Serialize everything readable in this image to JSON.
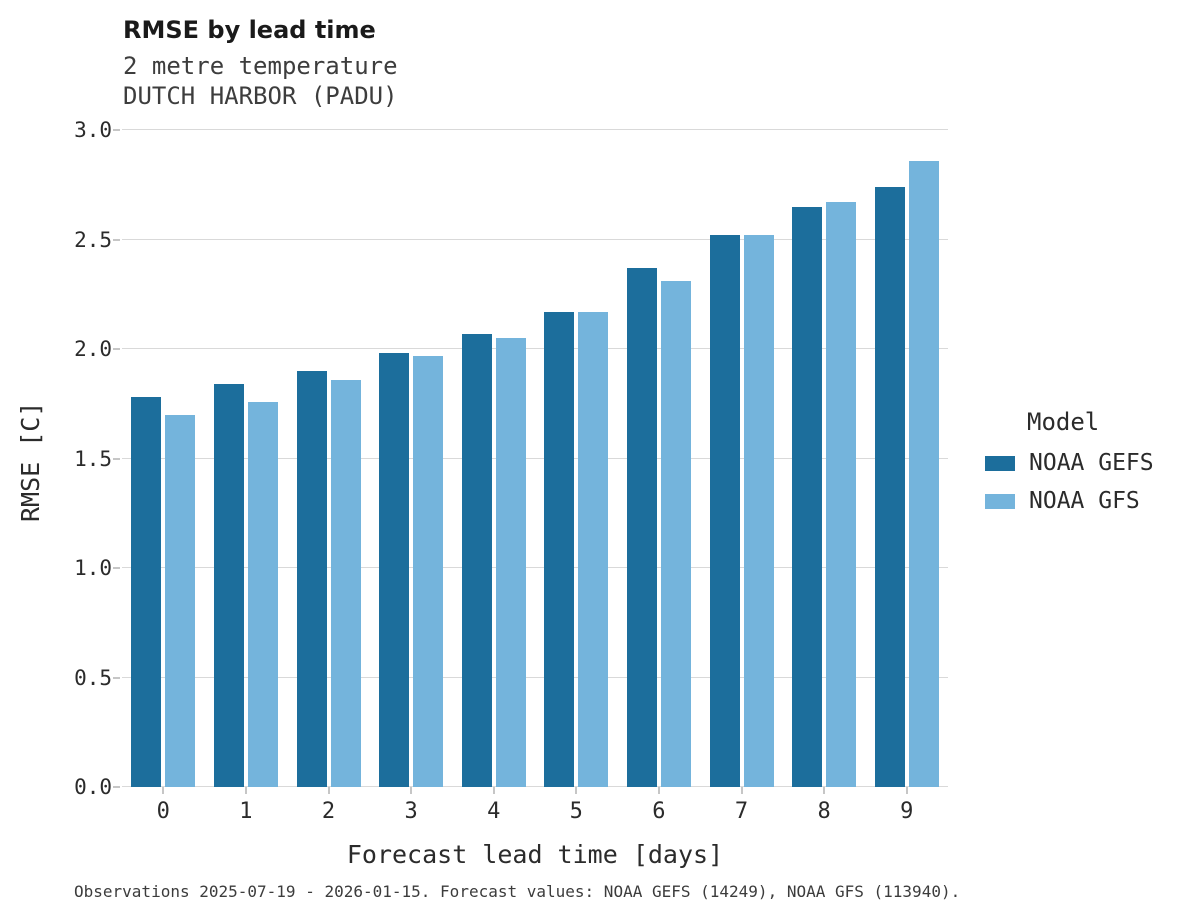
{
  "chart_data": {
    "type": "bar",
    "title": "RMSE by lead time",
    "subtitle_variable": "2 metre temperature",
    "subtitle_station": "DUTCH HARBOR (PADU)",
    "xlabel": "Forecast lead time [days]",
    "ylabel": "RMSE [C]",
    "categories": [
      "0",
      "1",
      "2",
      "3",
      "4",
      "5",
      "6",
      "7",
      "8",
      "9"
    ],
    "series": [
      {
        "name": "NOAA GEFS",
        "color": "#1c6e9c",
        "values": [
          1.78,
          1.84,
          1.9,
          1.98,
          2.07,
          2.17,
          2.37,
          2.52,
          2.65,
          2.74
        ]
      },
      {
        "name": "NOAA GFS",
        "color": "#74b4dc",
        "values": [
          1.7,
          1.76,
          1.86,
          1.97,
          2.05,
          2.17,
          2.31,
          2.52,
          2.67,
          2.86
        ]
      }
    ],
    "ylim": [
      0.0,
      3.0
    ],
    "ytick_labels": [
      "0.0",
      "0.5",
      "1.0",
      "1.5",
      "2.0",
      "2.5",
      "3.0"
    ],
    "grid": "horizontal",
    "legend_position": "right",
    "legend_title": "Model",
    "caption": "Observations 2025-07-19 - 2026-01-15. Forecast values: NOAA GEFS (14249), NOAA GFS (113940)."
  }
}
